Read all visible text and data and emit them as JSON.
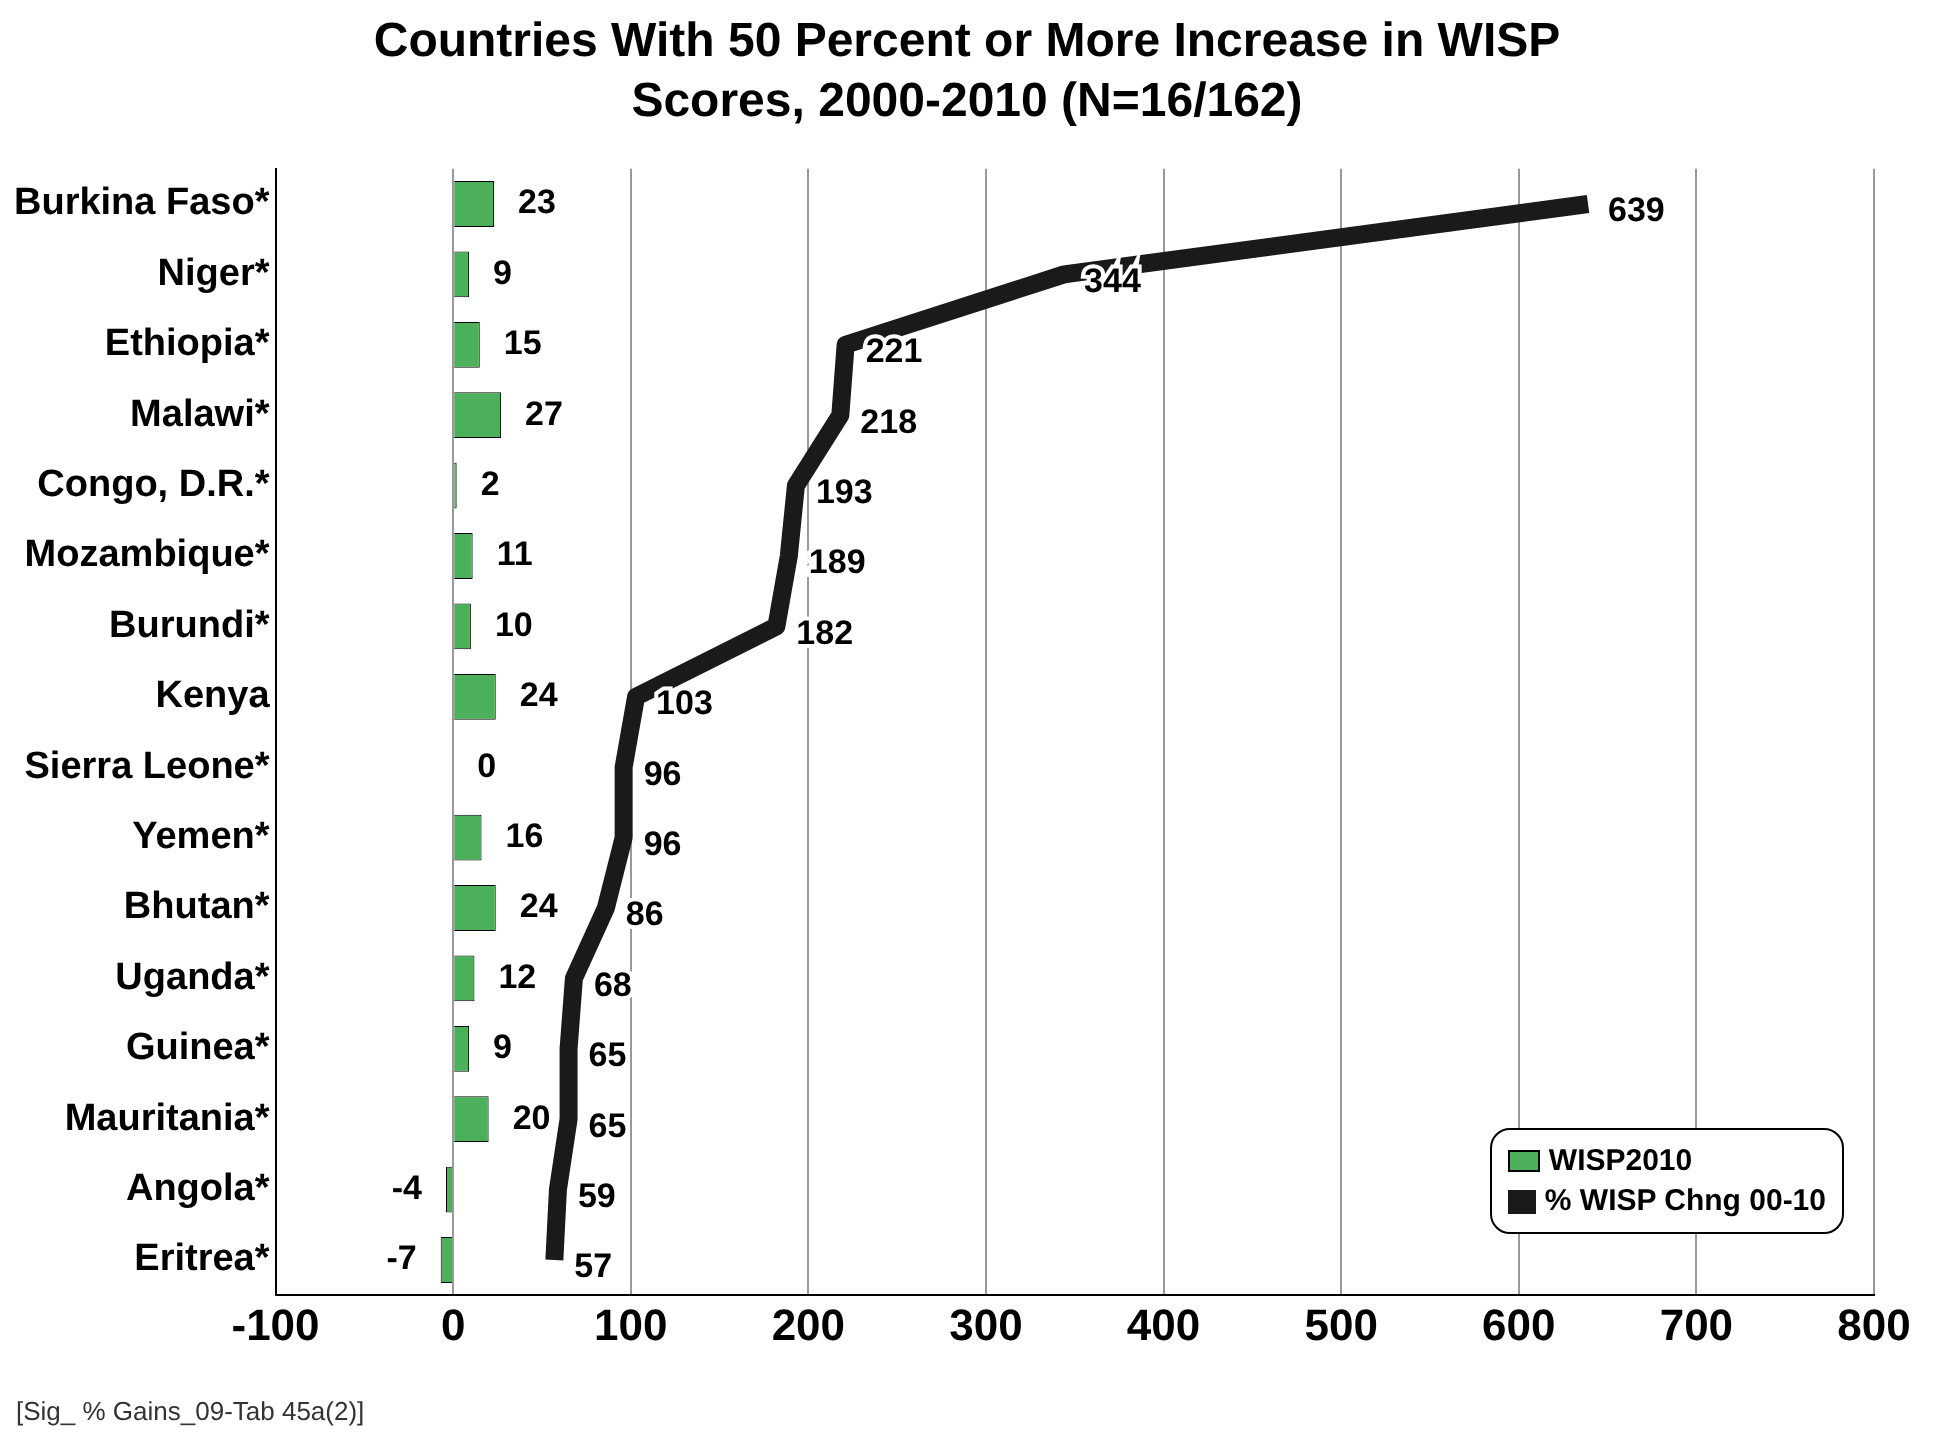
{
  "chart_data": {
    "type": "bar",
    "orientation": "horizontal",
    "title": "Countries With 50 Percent or More Increase in WISP Scores, 2000-2010 (N=16/162)",
    "categories": [
      "Burkina Faso*",
      "Niger*",
      "Ethiopia*",
      "Malawi*",
      "Congo, D.R.*",
      "Mozambique*",
      "Burundi*",
      "Kenya",
      "Sierra Leone*",
      "Yemen*",
      "Bhutan*",
      "Uganda*",
      "Guinea*",
      "Mauritania*",
      "Angola*",
      "Eritrea*"
    ],
    "series": [
      {
        "name": "WISP2010",
        "color": "#4caf5a",
        "values": [
          23,
          9,
          15,
          27,
          2,
          11,
          10,
          24,
          0,
          16,
          24,
          12,
          9,
          20,
          -4,
          -7
        ]
      },
      {
        "name": "% WISP Chng 00-10",
        "type": "line",
        "color": "#1a1a1a",
        "values": [
          639,
          344,
          221,
          218,
          193,
          189,
          182,
          103,
          96,
          96,
          86,
          68,
          65,
          65,
          59,
          57
        ]
      }
    ],
    "xlim": [
      -100,
      800
    ],
    "xticks": [
      -100,
      0,
      100,
      200,
      300,
      400,
      500,
      600,
      700,
      800
    ],
    "grid": "x",
    "legend": "bottom right",
    "marker": "none",
    "data_labels": true,
    "annotations": [
      "[Sig_ % Gains_09-Tab 45a(2)]"
    ]
  }
}
